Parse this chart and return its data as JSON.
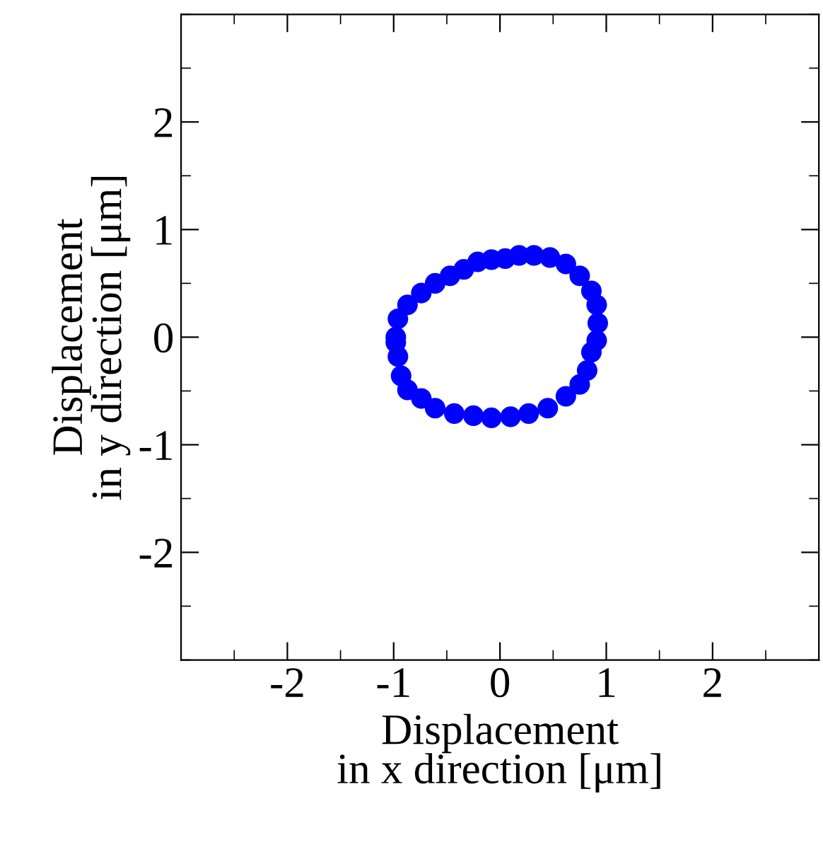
{
  "chart_data": {
    "type": "scatter",
    "xlabel": "Displacement\nin x direction [μm]",
    "ylabel": "Displacement\nin y direction [μm]",
    "xlim": [
      -3,
      3
    ],
    "ylim": [
      -3,
      3
    ],
    "xticks": [
      -2,
      -1,
      0,
      1,
      2
    ],
    "yticks": [
      -2,
      -1,
      0,
      1,
      2
    ],
    "grid": false,
    "legend": false,
    "marker": "circle",
    "x": [
      -0.98,
      -0.96,
      -0.87,
      -0.74,
      -0.61,
      -0.47,
      -0.34,
      -0.21,
      -0.08,
      0.05,
      0.18,
      0.32,
      0.47,
      0.62,
      0.75,
      0.86,
      0.91,
      0.92,
      0.91,
      0.86,
      0.82,
      0.75,
      0.62,
      0.45,
      0.27,
      0.1,
      -0.08,
      -0.25,
      -0.43,
      -0.61,
      -0.74,
      -0.87,
      -0.93,
      -0.96,
      -0.98
    ],
    "series": [
      {
        "color": "#0000ff",
        "values": [
          0,
          0.17,
          0.3,
          0.41,
          0.5,
          0.57,
          0.63,
          0.7,
          0.72,
          0.73,
          0.76,
          0.76,
          0.74,
          0.68,
          0.57,
          0.43,
          0.3,
          0.13,
          -0.03,
          -0.14,
          -0.31,
          -0.44,
          -0.55,
          -0.66,
          -0.71,
          -0.74,
          -0.75,
          -0.73,
          -0.71,
          -0.66,
          -0.57,
          -0.49,
          -0.36,
          -0.18,
          -0.05
        ]
      }
    ]
  }
}
